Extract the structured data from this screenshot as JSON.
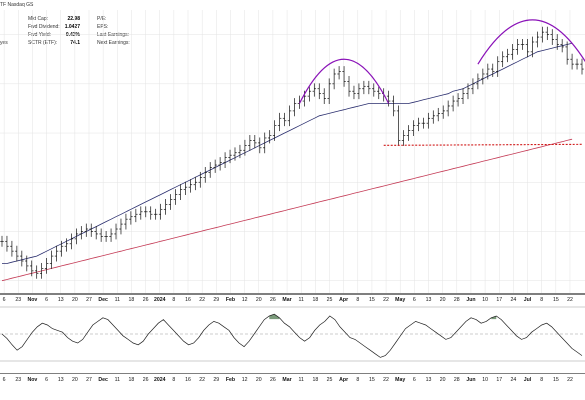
{
  "header": {
    "title_fragment": "TF Nasdaq GS",
    "left_label": "yes",
    "stats_left": [
      {
        "label": "Mkt Cap:",
        "value": "22.98"
      },
      {
        "label": "Fwd Dividend:",
        "value": "1.0427"
      },
      {
        "label": "Fwd Yield:",
        "value": "0.43%"
      },
      {
        "label": "SCTR (ETF):",
        "value": "74.1"
      }
    ],
    "stats_right": [
      {
        "label": "P/E:"
      },
      {
        "label": "EPS:"
      },
      {
        "label": "Last Earnings:"
      },
      {
        "label": "Next Earnings:"
      }
    ]
  },
  "colors": {
    "price": "#111111",
    "ma_short": "#2a2e6e",
    "ma_long": "#c43a55",
    "pattern_arc": "#8a12b8",
    "support_line": "#d11a1a",
    "osc_line": "#222222",
    "osc_fill": "#4f7a4f",
    "grid": "#e3e3e3",
    "frame": "#555555"
  },
  "chart_data": {
    "type": "line",
    "description_note": "",
    "x_ticks": [
      {
        "label": "6",
        "bold": false
      },
      {
        "label": "23",
        "bold": false
      },
      {
        "label": "Nov",
        "bold": true
      },
      {
        "label": "6",
        "bold": false
      },
      {
        "label": "13",
        "bold": false
      },
      {
        "label": "20",
        "bold": false
      },
      {
        "label": "27",
        "bold": false
      },
      {
        "label": "Dec",
        "bold": true
      },
      {
        "label": "11",
        "bold": false
      },
      {
        "label": "18",
        "bold": false
      },
      {
        "label": "26",
        "bold": false
      },
      {
        "label": "2024",
        "bold": true
      },
      {
        "label": "8",
        "bold": false
      },
      {
        "label": "16",
        "bold": false
      },
      {
        "label": "22",
        "bold": false
      },
      {
        "label": "29",
        "bold": false
      },
      {
        "label": "Feb",
        "bold": true
      },
      {
        "label": "12",
        "bold": false
      },
      {
        "label": "20",
        "bold": false
      },
      {
        "label": "26",
        "bold": false
      },
      {
        "label": "Mar",
        "bold": true
      },
      {
        "label": "11",
        "bold": false
      },
      {
        "label": "18",
        "bold": false
      },
      {
        "label": "25",
        "bold": false
      },
      {
        "label": "Apr",
        "bold": true
      },
      {
        "label": "8",
        "bold": false
      },
      {
        "label": "15",
        "bold": false
      },
      {
        "label": "22",
        "bold": false
      },
      {
        "label": "May",
        "bold": true
      },
      {
        "label": "6",
        "bold": false
      },
      {
        "label": "13",
        "bold": false
      },
      {
        "label": "20",
        "bold": false
      },
      {
        "label": "28",
        "bold": false
      },
      {
        "label": "Jun",
        "bold": true
      },
      {
        "label": "10",
        "bold": false
      },
      {
        "label": "17",
        "bold": false
      },
      {
        "label": "24",
        "bold": false
      },
      {
        "label": "Jul",
        "bold": true
      },
      {
        "label": "8",
        "bold": false
      },
      {
        "label": "15",
        "bold": false
      },
      {
        "label": "22",
        "bold": false
      }
    ],
    "price_series": [
      56,
      54,
      52,
      50,
      48,
      46,
      44,
      43,
      45,
      47,
      50,
      52,
      54,
      55,
      57,
      59,
      60,
      61,
      60,
      59,
      58,
      58,
      59,
      61,
      63,
      65,
      66,
      67,
      68,
      68,
      67,
      67,
      69,
      71,
      73,
      75,
      77,
      78,
      79,
      80,
      82,
      84,
      86,
      87,
      88,
      90,
      91,
      92,
      93,
      95,
      97,
      96,
      94,
      98,
      99,
      103,
      106,
      105,
      109,
      112,
      113,
      115,
      117,
      118,
      116,
      114,
      120,
      124,
      125,
      121,
      117,
      116,
      118,
      119,
      118,
      117,
      116,
      115,
      113,
      109,
      97,
      99,
      101,
      103,
      104,
      104,
      106,
      107,
      108,
      109,
      111,
      113,
      114,
      116,
      118,
      120,
      122,
      124,
      126,
      125,
      129,
      131,
      132,
      134,
      136,
      136,
      133,
      137,
      139,
      141,
      140,
      138,
      136,
      135,
      130,
      128,
      128,
      126
    ],
    "ma_short_series": [
      47,
      47,
      47.5,
      48,
      48.5,
      49,
      49.5,
      50,
      51,
      52,
      53,
      54,
      55,
      56,
      57,
      58,
      59,
      60,
      61,
      62,
      63,
      64,
      65,
      66,
      67,
      68,
      69,
      70,
      71,
      72,
      73,
      74,
      75,
      76,
      77,
      78,
      79,
      80,
      81,
      82,
      83,
      84,
      85,
      86,
      87,
      88,
      89,
      90,
      91,
      92,
      93,
      94,
      95,
      96,
      97,
      98,
      99,
      100,
      101,
      102,
      103,
      104,
      105,
      106,
      107,
      107.5,
      108,
      108.5,
      109,
      109.5,
      110,
      110.5,
      111,
      111.5,
      112,
      112,
      112,
      112,
      112,
      112,
      112,
      112,
      112,
      112.5,
      113,
      113.5,
      114,
      114.5,
      115,
      115.5,
      116,
      117,
      117.5,
      118,
      119,
      120,
      121,
      122,
      123,
      124,
      125,
      126,
      127,
      128,
      129,
      130,
      131,
      132,
      133,
      133.5,
      134,
      134.5,
      135,
      135.5,
      136,
      136.5
    ],
    "ma_long_series": [
      40,
      40.5,
      41,
      41.5,
      42,
      42.5,
      43,
      43.5,
      44,
      44.5,
      45,
      45.5,
      46,
      46.5,
      47,
      47.5,
      48,
      48.5,
      49,
      49.5,
      50,
      50.5,
      51,
      51.5,
      52,
      52.5,
      53,
      53.5,
      54,
      54.5,
      55,
      55.5,
      56,
      56.5,
      57,
      57.5,
      58,
      58.5,
      59,
      59.5,
      60,
      60.5,
      61,
      61.5,
      62,
      62.5,
      63,
      63.5,
      64,
      64.5,
      65,
      65.5,
      66,
      66.5,
      67,
      67.5,
      68,
      68.5,
      69,
      69.5,
      70,
      70.5,
      71,
      71.5,
      72,
      72.5,
      73,
      73.5,
      74,
      74.5,
      75,
      75.5,
      76,
      76.5,
      77,
      77.5,
      78,
      78.5,
      79,
      79.5,
      80,
      80.5,
      81,
      81.5,
      82,
      82.5,
      83,
      83.5,
      84,
      84.5,
      85,
      85.5,
      86,
      86.5,
      87,
      87.5,
      88,
      88.5,
      89,
      89.5,
      90,
      90.5,
      91,
      91.5,
      92,
      92.5,
      93,
      93.5,
      94,
      94.5,
      95,
      95.5,
      96,
      96.5,
      97,
      97.5
    ],
    "oscillator_series": [
      0,
      -5,
      -12,
      -18,
      -14,
      -6,
      2,
      8,
      12,
      10,
      6,
      4,
      2,
      -4,
      -8,
      -10,
      -6,
      2,
      10,
      14,
      18,
      16,
      10,
      4,
      -2,
      -6,
      -10,
      -12,
      -8,
      0,
      6,
      12,
      16,
      10,
      4,
      -2,
      -8,
      -12,
      -10,
      -4,
      4,
      10,
      14,
      12,
      8,
      4,
      -4,
      -10,
      -14,
      -8,
      0,
      8,
      16,
      20,
      22,
      18,
      12,
      8,
      2,
      -4,
      -8,
      -4,
      4,
      10,
      14,
      20,
      16,
      8,
      2,
      -4,
      -6,
      -10,
      -14,
      -18,
      -22,
      -26,
      -24,
      -18,
      -10,
      -2,
      6,
      10,
      14,
      12,
      10,
      6,
      2,
      -2,
      -6,
      -4,
      2,
      8,
      14,
      18,
      16,
      12,
      14,
      18,
      20,
      16,
      10,
      4,
      -2,
      -6,
      -4,
      2,
      6,
      10,
      12,
      8,
      2,
      -4,
      -10,
      -16,
      -20,
      -24
    ],
    "osc_levels": [
      30,
      0,
      -30
    ],
    "price_ylim": [
      35,
      150
    ],
    "osc_ylim": [
      -40,
      40
    ],
    "support_level": 95,
    "annotations": [
      "rounded-top arc (Mar)",
      "double rounded-top arc (Jun-Jul)",
      "support line (Apr-Jul)"
    ]
  }
}
